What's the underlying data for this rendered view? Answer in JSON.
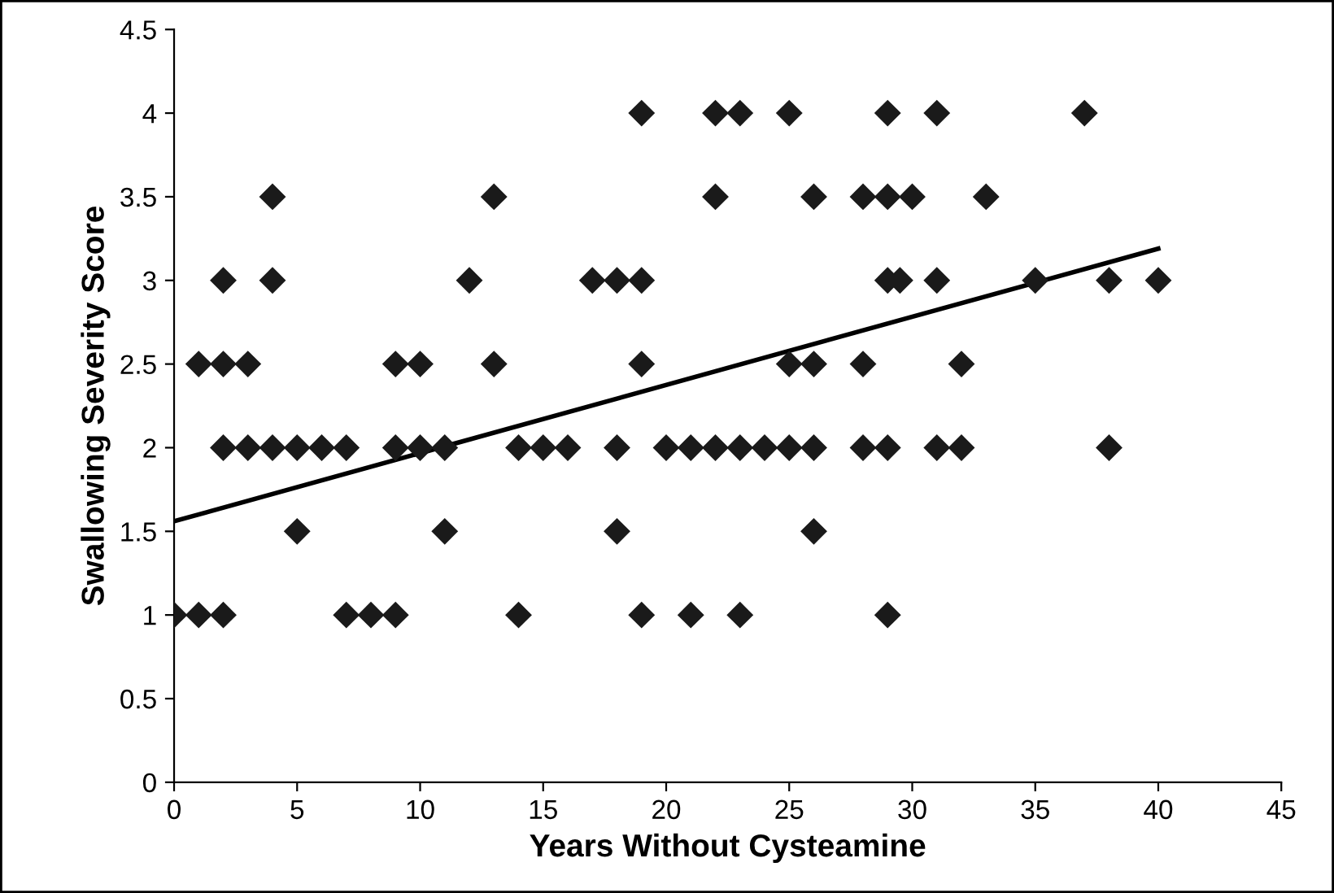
{
  "chart_data": {
    "type": "scatter",
    "xlabel": "Years Without Cysteamine",
    "ylabel": "Swallowing Severity Score",
    "xlim": [
      0,
      45
    ],
    "xticks": [
      0,
      5,
      10,
      15,
      20,
      25,
      30,
      35,
      40,
      45
    ],
    "ylim": [
      0,
      4.5
    ],
    "yticks": [
      0,
      0.5,
      1,
      1.5,
      2,
      2.5,
      3,
      3.5,
      4,
      4.5
    ],
    "grid": false,
    "legend": false,
    "marker": "diamond",
    "series": [
      {
        "color": "#1a1a1a",
        "x": [
          19,
          22,
          23,
          25,
          29,
          31,
          37,
          4,
          13,
          22,
          26,
          28,
          29,
          30,
          33,
          2,
          4,
          12,
          17,
          18,
          19,
          29,
          29.5,
          31,
          35,
          38,
          40,
          1,
          2,
          3,
          9,
          10,
          13,
          19,
          25,
          26,
          28,
          32,
          2,
          3,
          4,
          5,
          6,
          7,
          9,
          10,
          11,
          14,
          15,
          16,
          18,
          20,
          21,
          22,
          23,
          24,
          25,
          26,
          28,
          29,
          31,
          32,
          38,
          5,
          11,
          18,
          26,
          0,
          1,
          2,
          7,
          8,
          9,
          14,
          19,
          21,
          23,
          29
        ],
        "values": [
          4,
          4,
          4,
          4,
          4,
          4,
          4,
          3.5,
          3.5,
          3.5,
          3.5,
          3.5,
          3.5,
          3.5,
          3.5,
          3,
          3,
          3,
          3,
          3,
          3,
          3,
          3,
          3,
          3,
          3,
          3,
          2.5,
          2.5,
          2.5,
          2.5,
          2.5,
          2.5,
          2.5,
          2.5,
          2.5,
          2.5,
          2.5,
          2,
          2,
          2,
          2,
          2,
          2,
          2,
          2,
          2,
          2,
          2,
          2,
          2,
          2,
          2,
          2,
          2,
          2,
          2,
          2,
          2,
          2,
          2,
          2,
          2,
          1.5,
          1.5,
          1.5,
          1.5,
          1,
          1,
          1,
          1,
          1,
          1,
          1,
          1,
          1,
          1,
          1
        ]
      },
      {
        "type": "line",
        "color": "#000000",
        "marker": "none",
        "line_style": "solid",
        "x": [
          0,
          40
        ],
        "values": [
          1.56,
          3.19
        ]
      }
    ]
  }
}
